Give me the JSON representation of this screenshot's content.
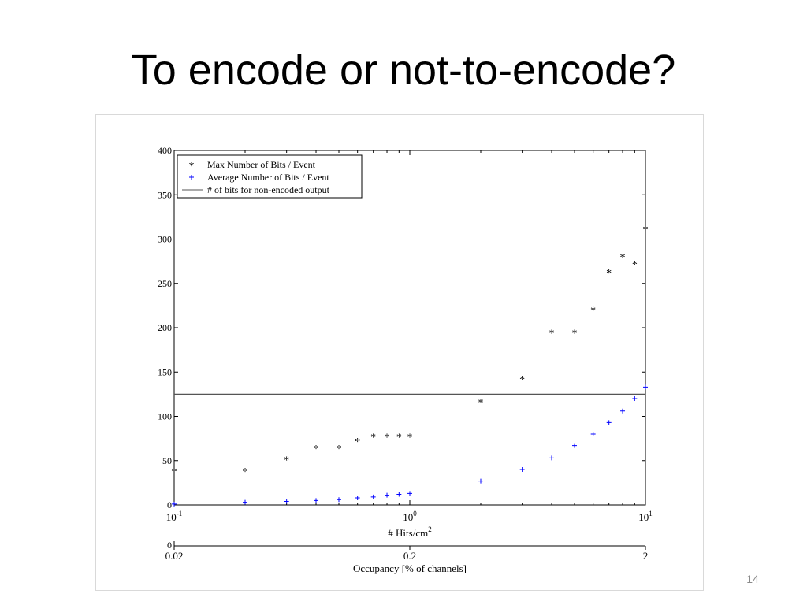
{
  "slide": {
    "title": "To encode or not-to-encode?",
    "number": "14"
  },
  "chart_data": {
    "type": "scatter",
    "xscale": "log",
    "xlim": [
      0.1,
      10
    ],
    "ylim": [
      0,
      400
    ],
    "xlabel": "# Hits/cm",
    "xlabel_superscript": "2",
    "x_ticks": [
      {
        "value": 0.1,
        "base": "10",
        "exp": "-1"
      },
      {
        "value": 1,
        "base": "10",
        "exp": "0"
      },
      {
        "value": 10,
        "base": "10",
        "exp": "1"
      }
    ],
    "y_ticks": [
      "0",
      "50",
      "100",
      "150",
      "200",
      "250",
      "300",
      "350",
      "400"
    ],
    "grid": false,
    "legend_position": "top-left",
    "series": [
      {
        "name": "Max Number of Bits / Event",
        "marker": "*",
        "color": "#ff0000",
        "x": [
          0.1,
          0.2,
          0.3,
          0.4,
          0.5,
          0.6,
          0.7,
          0.8,
          0.9,
          1,
          2,
          3,
          4,
          5,
          6,
          7,
          8,
          9,
          10
        ],
        "y": [
          39,
          39,
          52,
          65,
          65,
          73,
          78,
          78,
          78,
          78,
          117,
          143,
          195,
          195,
          221,
          263,
          281,
          273,
          312
        ]
      },
      {
        "name": "Average Number of Bits / Event",
        "marker": "+",
        "color": "#0000ff",
        "x": [
          0.1,
          0.2,
          0.3,
          0.4,
          0.5,
          0.6,
          0.7,
          0.8,
          0.9,
          1,
          2,
          3,
          4,
          5,
          6,
          7,
          8,
          9,
          10
        ],
        "y": [
          1,
          3,
          4,
          5,
          6,
          8,
          9,
          11,
          12,
          13,
          27,
          40,
          53,
          67,
          80,
          93,
          106,
          120,
          133
        ]
      },
      {
        "name": "# of bits for non-encoded output",
        "type": "line",
        "color": "#555555",
        "x": [
          0.1,
          10
        ],
        "y": [
          125,
          125
        ]
      }
    ],
    "secondary_axis": {
      "label": "Occupancy [% of channels]",
      "zero_label": "0",
      "ticks": [
        {
          "label": "0.02",
          "at_x": 0.1
        },
        {
          "label": "0.2",
          "at_x": 1
        },
        {
          "label": "2",
          "at_x": 10
        }
      ]
    }
  }
}
